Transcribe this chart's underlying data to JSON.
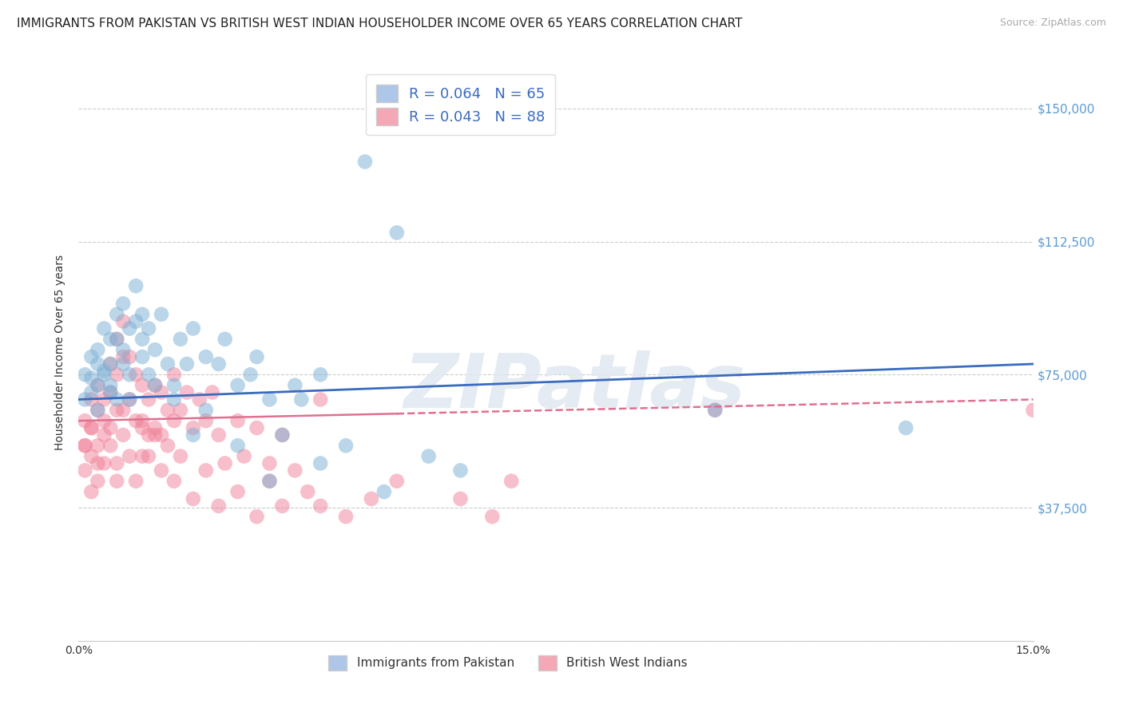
{
  "title": "IMMIGRANTS FROM PAKISTAN VS BRITISH WEST INDIAN HOUSEHOLDER INCOME OVER 65 YEARS CORRELATION CHART",
  "source": "Source: ZipAtlas.com",
  "ylabel": "Householder Income Over 65 years",
  "xlim": [
    0.0,
    0.15
  ],
  "ylim": [
    0,
    162500
  ],
  "ytick_positions": [
    0,
    37500,
    75000,
    112500,
    150000
  ],
  "ytick_labels": [
    "",
    "$37,500",
    "$75,000",
    "$112,500",
    "$150,000"
  ],
  "watermark": "ZIPatlas",
  "legend_blue_label": "R = 0.064   N = 65",
  "legend_pink_label": "R = 0.043   N = 88",
  "legend_blue_color": "#aec6e8",
  "legend_pink_color": "#f4a7b5",
  "dot_blue_color": "#7bafd4",
  "dot_pink_color": "#f08098",
  "line_blue_color": "#3a6bbf",
  "line_pink_color": "#e07090",
  "background_color": "#ffffff",
  "title_fontsize": 11,
  "axis_label_fontsize": 10,
  "tick_fontsize": 10,
  "blue_R": 0.064,
  "blue_N": 65,
  "pink_R": 0.043,
  "pink_N": 88,
  "blue_x": [
    0.001,
    0.002,
    0.002,
    0.003,
    0.003,
    0.003,
    0.004,
    0.004,
    0.005,
    0.005,
    0.005,
    0.006,
    0.006,
    0.007,
    0.007,
    0.008,
    0.008,
    0.009,
    0.01,
    0.01,
    0.011,
    0.011,
    0.012,
    0.013,
    0.014,
    0.015,
    0.016,
    0.017,
    0.018,
    0.02,
    0.022,
    0.023,
    0.025,
    0.027,
    0.028,
    0.03,
    0.032,
    0.034,
    0.035,
    0.038,
    0.042,
    0.045,
    0.05,
    0.001,
    0.002,
    0.003,
    0.004,
    0.005,
    0.006,
    0.007,
    0.008,
    0.009,
    0.01,
    0.012,
    0.015,
    0.018,
    0.02,
    0.025,
    0.03,
    0.038,
    0.048,
    0.055,
    0.06,
    0.1,
    0.13
  ],
  "blue_y": [
    75000,
    80000,
    70000,
    78000,
    72000,
    82000,
    88000,
    75000,
    85000,
    70000,
    78000,
    92000,
    68000,
    95000,
    82000,
    88000,
    75000,
    100000,
    92000,
    85000,
    88000,
    75000,
    82000,
    92000,
    78000,
    72000,
    85000,
    78000,
    88000,
    80000,
    78000,
    85000,
    72000,
    75000,
    80000,
    68000,
    58000,
    72000,
    68000,
    75000,
    55000,
    135000,
    115000,
    68000,
    74000,
    65000,
    76000,
    72000,
    85000,
    78000,
    68000,
    90000,
    80000,
    72000,
    68000,
    58000,
    65000,
    55000,
    45000,
    50000,
    42000,
    52000,
    48000,
    65000,
    60000
  ],
  "pink_x": [
    0.001,
    0.001,
    0.001,
    0.002,
    0.002,
    0.002,
    0.002,
    0.003,
    0.003,
    0.003,
    0.003,
    0.004,
    0.004,
    0.004,
    0.005,
    0.005,
    0.005,
    0.006,
    0.006,
    0.006,
    0.006,
    0.007,
    0.007,
    0.007,
    0.008,
    0.008,
    0.009,
    0.009,
    0.01,
    0.01,
    0.01,
    0.011,
    0.011,
    0.012,
    0.012,
    0.013,
    0.013,
    0.014,
    0.015,
    0.015,
    0.016,
    0.017,
    0.018,
    0.019,
    0.02,
    0.021,
    0.022,
    0.023,
    0.025,
    0.026,
    0.028,
    0.03,
    0.032,
    0.034,
    0.001,
    0.002,
    0.003,
    0.004,
    0.005,
    0.006,
    0.007,
    0.008,
    0.009,
    0.01,
    0.011,
    0.012,
    0.013,
    0.014,
    0.015,
    0.016,
    0.018,
    0.02,
    0.022,
    0.025,
    0.028,
    0.03,
    0.032,
    0.036,
    0.038,
    0.042,
    0.046,
    0.05,
    0.06,
    0.065,
    0.038,
    0.068,
    0.1,
    0.15
  ],
  "pink_y": [
    62000,
    55000,
    48000,
    68000,
    60000,
    52000,
    42000,
    72000,
    65000,
    55000,
    45000,
    68000,
    58000,
    50000,
    78000,
    70000,
    60000,
    85000,
    75000,
    65000,
    50000,
    90000,
    80000,
    65000,
    80000,
    68000,
    75000,
    62000,
    72000,
    62000,
    52000,
    68000,
    58000,
    72000,
    60000,
    70000,
    58000,
    65000,
    75000,
    62000,
    65000,
    70000,
    60000,
    68000,
    62000,
    70000,
    58000,
    50000,
    62000,
    52000,
    60000,
    50000,
    58000,
    48000,
    55000,
    60000,
    50000,
    62000,
    55000,
    45000,
    58000,
    52000,
    45000,
    60000,
    52000,
    58000,
    48000,
    55000,
    45000,
    52000,
    40000,
    48000,
    38000,
    42000,
    35000,
    45000,
    38000,
    42000,
    38000,
    35000,
    40000,
    45000,
    40000,
    35000,
    68000,
    45000,
    65000,
    65000
  ]
}
